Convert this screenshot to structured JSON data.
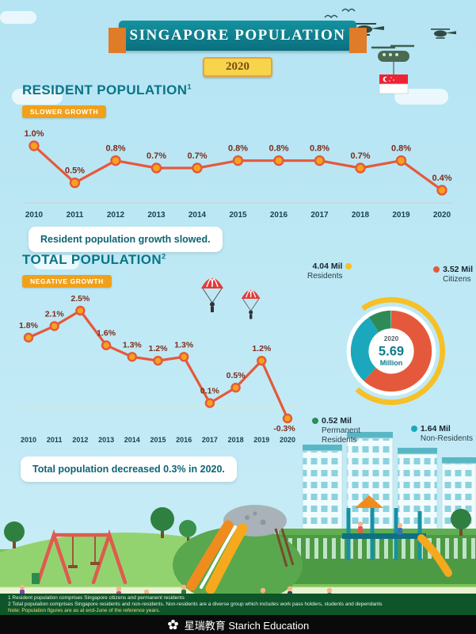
{
  "header": {
    "title": "SINGAPORE POPULATION",
    "year": "2020"
  },
  "sections": {
    "resident": {
      "title": "RESIDENT POPULATION",
      "footnote_ref": "1",
      "badge": "SLOWER GROWTH",
      "caption": "Resident population growth slowed."
    },
    "total": {
      "title": "TOTAL POPULATION",
      "footnote_ref": "2",
      "badge": "NEGATIVE GROWTH",
      "caption": "Total population decreased 0.3% in 2020."
    }
  },
  "chart_data": [
    {
      "id": "resident-growth",
      "type": "line",
      "x": [
        "2010",
        "2011",
        "2012",
        "2013",
        "2014",
        "2015",
        "2016",
        "2017",
        "2018",
        "2019",
        "2020"
      ],
      "values": [
        1.0,
        0.5,
        0.8,
        0.7,
        0.7,
        0.8,
        0.8,
        0.8,
        0.7,
        0.8,
        0.4
      ],
      "labels": [
        "1.0%",
        "0.5%",
        "0.8%",
        "0.7%",
        "0.7%",
        "0.8%",
        "0.8%",
        "0.8%",
        "0.7%",
        "0.8%",
        "0.4%"
      ],
      "ylim": [
        0.4,
        1.0
      ],
      "line_color": "#e4593b",
      "marker_fill": "#f6a21d",
      "label_color": "#7c2d1c"
    },
    {
      "id": "total-growth",
      "type": "line",
      "x": [
        "2010",
        "2011",
        "2012",
        "2013",
        "2014",
        "2015",
        "2016",
        "2017",
        "2018",
        "2019",
        "2020"
      ],
      "values": [
        1.8,
        2.1,
        2.5,
        1.6,
        1.3,
        1.2,
        1.3,
        0.1,
        0.5,
        1.2,
        -0.3
      ],
      "labels": [
        "1.8%",
        "2.1%",
        "2.5%",
        "1.6%",
        "1.3%",
        "1.2%",
        "1.3%",
        "0.1%",
        "0.5%",
        "1.2%",
        "-0.3%"
      ],
      "ylim": [
        -0.3,
        2.5
      ],
      "zero_line": true,
      "line_color": "#e4593b",
      "marker_fill": "#f6a21d",
      "label_color": "#7c2d1c"
    },
    {
      "id": "population-breakdown",
      "type": "donut",
      "center": {
        "year": "2020",
        "value": "5.69",
        "unit": "Million"
      },
      "total_value": 5.69,
      "outer_ring": {
        "label": "Residents",
        "value_label": "4.04 Mil",
        "value": 4.04,
        "color": "#f6c026"
      },
      "slices": [
        {
          "label": "Citizens",
          "value_label": "3.52 Mil",
          "value": 3.52,
          "color": "#e4593b"
        },
        {
          "label": "Non-Residents",
          "value_label": "1.64 Mil",
          "value": 1.64,
          "color": "#1ba8bc"
        },
        {
          "label": "Permanent Residents",
          "value_label": "0.52 Mil",
          "value": 0.52,
          "color": "#2e8b57"
        }
      ]
    }
  ],
  "footnotes": [
    "1 Resident population comprises Singapore citizens and permanent residents",
    "2 Total population comprises Singapore residents and non-residents. Non-residents are a diverse group which includes work pass holders, students and dependants",
    "Note: Population figures are as at end-June of the reference years."
  ],
  "footer": {
    "brand": "星瑞教育 Starich Education"
  }
}
